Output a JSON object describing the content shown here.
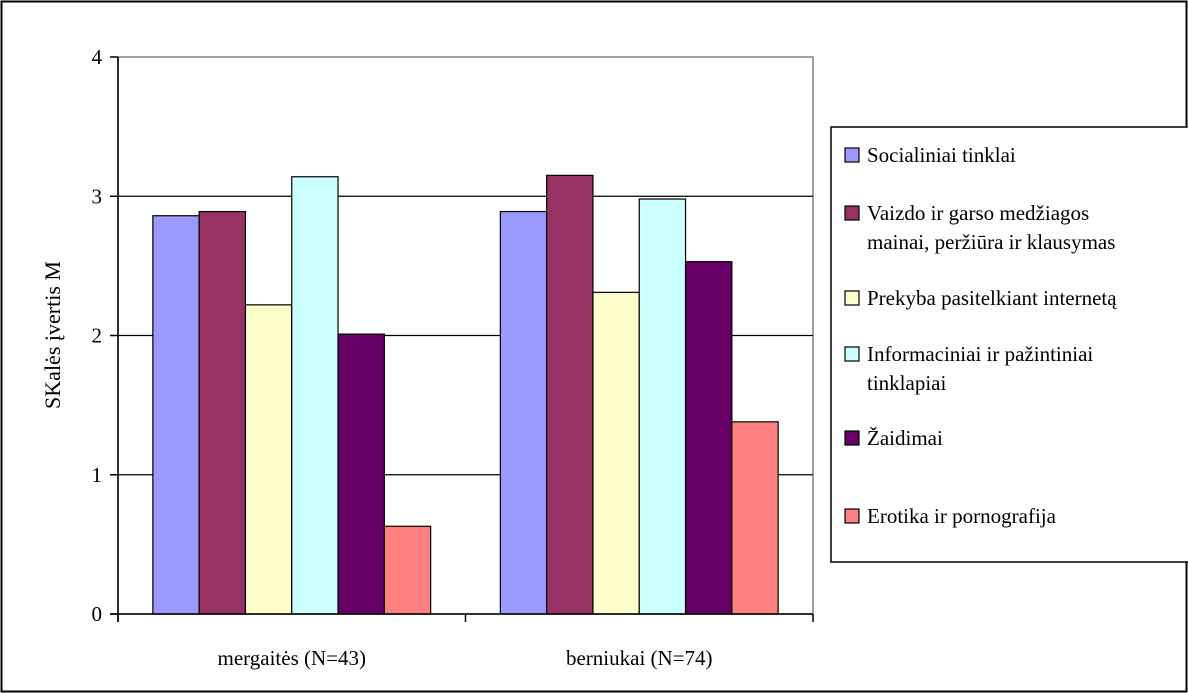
{
  "chart_data": {
    "type": "bar",
    "ylabel": "SKalės įvertis M",
    "ylim": [
      0,
      4
    ],
    "yticks": [
      0,
      1,
      2,
      3,
      4
    ],
    "grid": true,
    "legend_position": "right",
    "categories": [
      "mergaitės (N=43)",
      "berniukai (N=74)"
    ],
    "series": [
      {
        "name": "Socialiniai tinklai",
        "label_lines": [
          "Socialiniai tinklai"
        ],
        "color": "#9999FF",
        "values": [
          2.86,
          2.89
        ]
      },
      {
        "name": "Vaizdo ir garso medžiagos mainai, peržiūra ir klausymas",
        "label_lines": [
          "Vaizdo ir garso medžiagos",
          "mainai, peržiūra ir klausymas"
        ],
        "color": "#993366",
        "values": [
          2.89,
          3.15
        ]
      },
      {
        "name": "Prekyba pasitelkiant internetą",
        "label_lines": [
          "Prekyba pasitelkiant internetą"
        ],
        "color": "#FFFFCC",
        "values": [
          2.22,
          2.31
        ]
      },
      {
        "name": "Informaciniai ir pažintiniai tinklapiai",
        "label_lines": [
          "Informaciniai ir pažintiniai",
          "tinklapiai"
        ],
        "color": "#CCFFFF",
        "values": [
          3.14,
          2.98
        ]
      },
      {
        "name": "Žaidimai",
        "label_lines": [
          "Žaidimai"
        ],
        "color": "#660066",
        "values": [
          2.01,
          2.53
        ]
      },
      {
        "name": "Erotika ir pornografija",
        "label_lines": [
          "Erotika ir pornografija"
        ],
        "color": "#FF8080",
        "values": [
          0.63,
          1.38
        ]
      }
    ]
  }
}
